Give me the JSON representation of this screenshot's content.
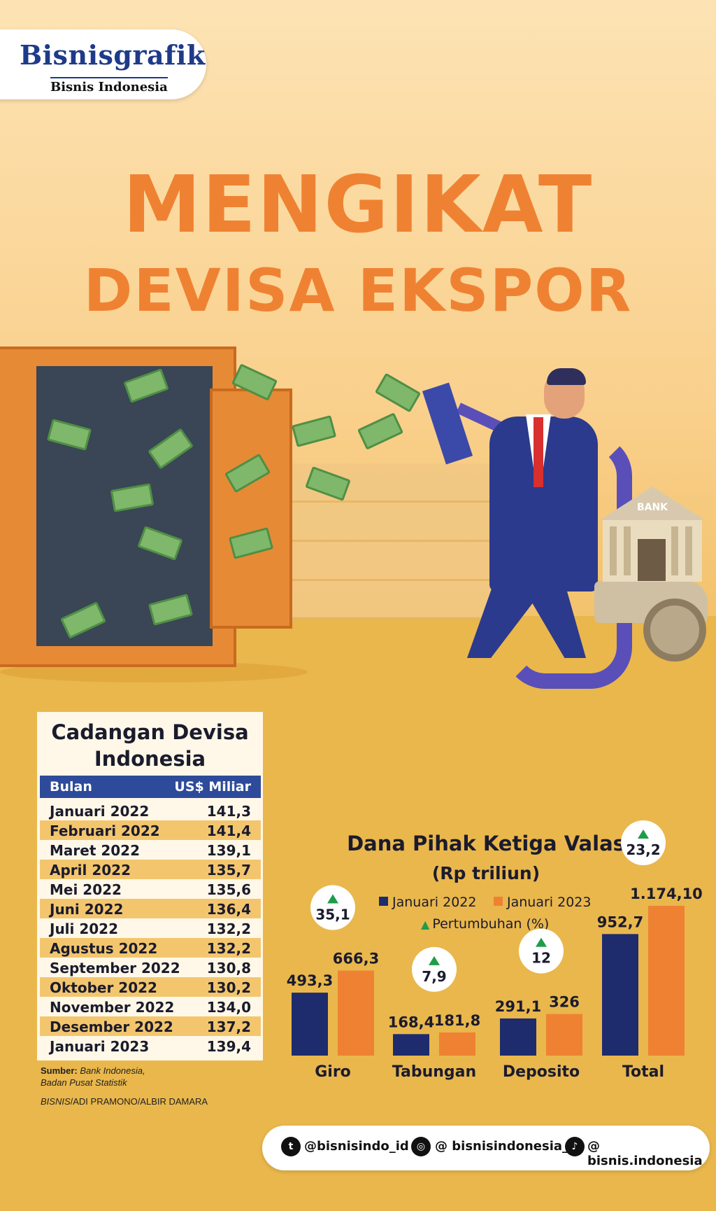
{
  "logo": {
    "brand": "Bisnisgrafik",
    "subbrand": "Bisnis Indonesia"
  },
  "headline": {
    "line1": "MENGIKAT",
    "line2": "DEVISA EKSPOR"
  },
  "illustration": {
    "bank_label": "BANK"
  },
  "reserves_table": {
    "title": "Cadangan Devisa Indonesia",
    "col_month": "Bulan",
    "col_value": "US$ Miliar",
    "rows": [
      {
        "month": "Januari 2022",
        "value": "141,3"
      },
      {
        "month": "Februari 2022",
        "value": "141,4"
      },
      {
        "month": "Maret 2022",
        "value": "139,1"
      },
      {
        "month": "April 2022",
        "value": "135,7"
      },
      {
        "month": "Mei 2022",
        "value": "135,6"
      },
      {
        "month": "Juni 2022",
        "value": "136,4"
      },
      {
        "month": "Juli 2022",
        "value": "132,2"
      },
      {
        "month": "Agustus 2022",
        "value": "132,2"
      },
      {
        "month": "September 2022",
        "value": "130,8"
      },
      {
        "month": "Oktober 2022",
        "value": "130,2"
      },
      {
        "month": "November 2022",
        "value": "134,0"
      },
      {
        "month": "Desember 2022",
        "value": "137,2"
      },
      {
        "month": "Januari 2023",
        "value": "139,4"
      }
    ]
  },
  "source": {
    "label": "Sumber:",
    "line1": "Bank Indonesia,",
    "line2": "Badan Pusat Statistik",
    "credit_org": "BISNIS",
    "credit_people": "/ADI PRAMONO/ALBIR DAMARA"
  },
  "chart_data": {
    "type": "bar",
    "title": "Dana Pihak Ketiga Valas",
    "subtitle": "(Rp triliun)",
    "categories": [
      "Giro",
      "Tabungan",
      "Deposito",
      "Total"
    ],
    "series": [
      {
        "name": "Januari 2022",
        "values": [
          493.3,
          168.4,
          291.1,
          952.7
        ],
        "labels": [
          "493,3",
          "168,4",
          "291,1",
          "952,7"
        ],
        "color": "#1e2c6e"
      },
      {
        "name": "Januari 2023",
        "values": [
          666.3,
          181.8,
          326,
          1174.1
        ],
        "labels": [
          "666,3",
          "181,8",
          "326",
          "1.174,10"
        ],
        "color": "#ef8232"
      }
    ],
    "growth": {
      "name": "Pertumbuhan (%)",
      "values": [
        35.1,
        7.9,
        12,
        23.2
      ],
      "labels": [
        "35,1",
        "7,9",
        "12",
        "23,2"
      ],
      "color": "#1f9c4a"
    }
  },
  "footer": {
    "twitter": "@bisnisindo_id",
    "instagram": "@ bisnisindonesia_id",
    "tiktok": "@ bisnis.indonesia"
  },
  "colors": {
    "headline": "#ef8232",
    "navy": "#1e2c6e",
    "orange": "#ef8232",
    "table_header": "#2d4b9a",
    "stripe": "#f3c66e"
  }
}
